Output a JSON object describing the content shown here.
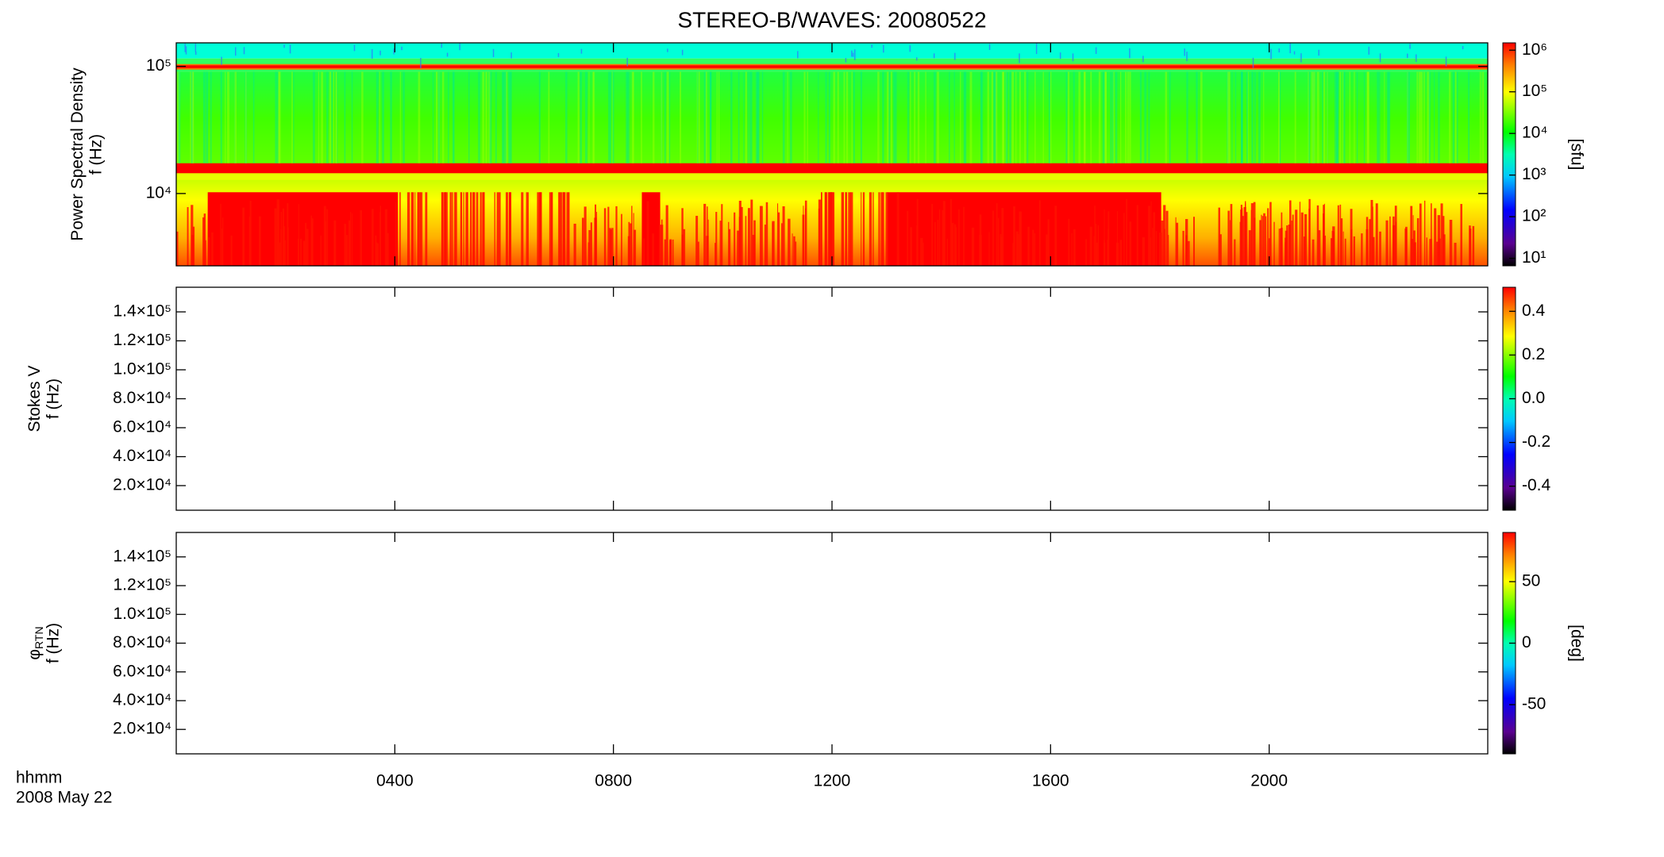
{
  "chart_data": [
    {
      "type": "heatmap",
      "title": "STEREO-B/WAVES: 20080522",
      "ylabel": "Power Spectral Density",
      "ylabel2": "f (Hz)",
      "yscale": "log",
      "ylim": [
        2700,
        153000
      ],
      "yticks": [
        {
          "value": 10000,
          "label": "10⁴"
        },
        {
          "value": 100000,
          "label": "10⁵"
        }
      ],
      "zscale": "log",
      "zlim": [
        6.6,
        1500000
      ],
      "zticks": [
        {
          "value": 10,
          "label": "10¹"
        },
        {
          "value": 100,
          "label": "10²"
        },
        {
          "value": 1000,
          "label": "10³"
        },
        {
          "value": 10000,
          "label": "10⁴"
        },
        {
          "value": 100000,
          "label": "10⁵"
        },
        {
          "value": 1000000,
          "label": "10⁶"
        }
      ],
      "zlabel": "[sfu]"
    },
    {
      "type": "heatmap",
      "ylabel": "Stokes V",
      "ylabel2": "f (Hz)",
      "yscale": "linear",
      "ylim": [
        3000,
        157000
      ],
      "yticks": [
        {
          "value": 20000,
          "label": "2.0×10⁴"
        },
        {
          "value": 40000,
          "label": "4.0×10⁴"
        },
        {
          "value": 60000,
          "label": "6.0×10⁴"
        },
        {
          "value": 80000,
          "label": "8.0×10⁴"
        },
        {
          "value": 100000,
          "label": "1.0×10⁵"
        },
        {
          "value": 120000,
          "label": "1.2×10⁵"
        },
        {
          "value": 140000,
          "label": "1.4×10⁵"
        }
      ],
      "zscale": "linear",
      "zlim": [
        -0.51,
        0.51
      ],
      "zticks": [
        -0.4,
        -0.2,
        {
          "value": 0,
          "label": "0.0"
        },
        0.2,
        0.4
      ]
    },
    {
      "type": "heatmap",
      "ylabel": "φ",
      "ylabel_subscript": "RTN",
      "ylabel2": "f (Hz)",
      "yscale": "linear",
      "ylim": [
        3000,
        157000
      ],
      "yticks": [
        {
          "value": 20000,
          "label": "2.0×10⁴"
        },
        {
          "value": 40000,
          "label": "4.0×10⁴"
        },
        {
          "value": 60000,
          "label": "6.0×10⁴"
        },
        {
          "value": 80000,
          "label": "8.0×10⁴"
        },
        {
          "value": 100000,
          "label": "1.0×10⁵"
        },
        {
          "value": 120000,
          "label": "1.2×10⁵"
        },
        {
          "value": 140000,
          "label": "1.4×10⁵"
        }
      ],
      "zscale": "linear",
      "zlim": [
        -90,
        90
      ],
      "zticks": [
        -50,
        0,
        50
      ],
      "zlabel": "[deg]",
      "xlim": [
        0,
        24
      ],
      "xticks": [
        {
          "value": 4,
          "label": "0400"
        },
        {
          "value": 8,
          "label": "0800"
        },
        {
          "value": 12,
          "label": "1200"
        },
        {
          "value": 16,
          "label": "1600"
        },
        {
          "value": 20,
          "label": "2000"
        }
      ],
      "xlabel": "hhmm",
      "date": "2008 May 22"
    }
  ]
}
